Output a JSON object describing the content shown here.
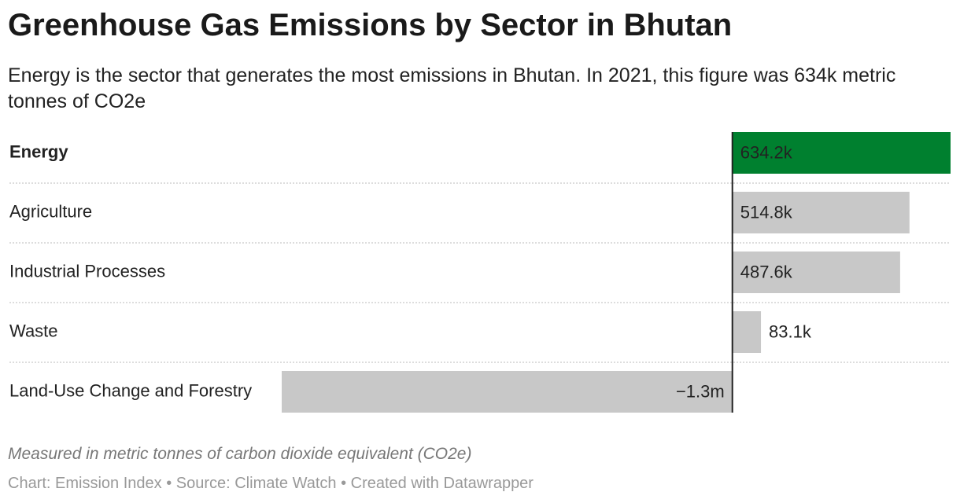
{
  "chart_data": {
    "type": "bar",
    "title": "Greenhouse Gas Emissions by Sector in Bhutan",
    "subtitle": "Energy is the sector that generates the most emissions in Bhutan. In 2021, this figure was 634k metric tonnes of CO2e",
    "note": "Measured in metric tonnes of carbon dioxide equivalent (CO2e)",
    "source": "Chart: Emission Index • Source: Climate Watch • Created with Datawrapper",
    "categories": [
      "Energy",
      "Agriculture",
      "Industrial Processes",
      "Waste",
      "Land-Use Change and Forestry"
    ],
    "values": [
      634200,
      514800,
      487600,
      83100,
      -1310000
    ],
    "value_labels": [
      "634.2k",
      "514.8k",
      "487.6k",
      "83.1k",
      "−1.3m"
    ],
    "xlim": [
      -1310000,
      634200
    ],
    "color": "#c8c8c8",
    "highlight": "Energy",
    "highlight_color": "#00802f"
  }
}
